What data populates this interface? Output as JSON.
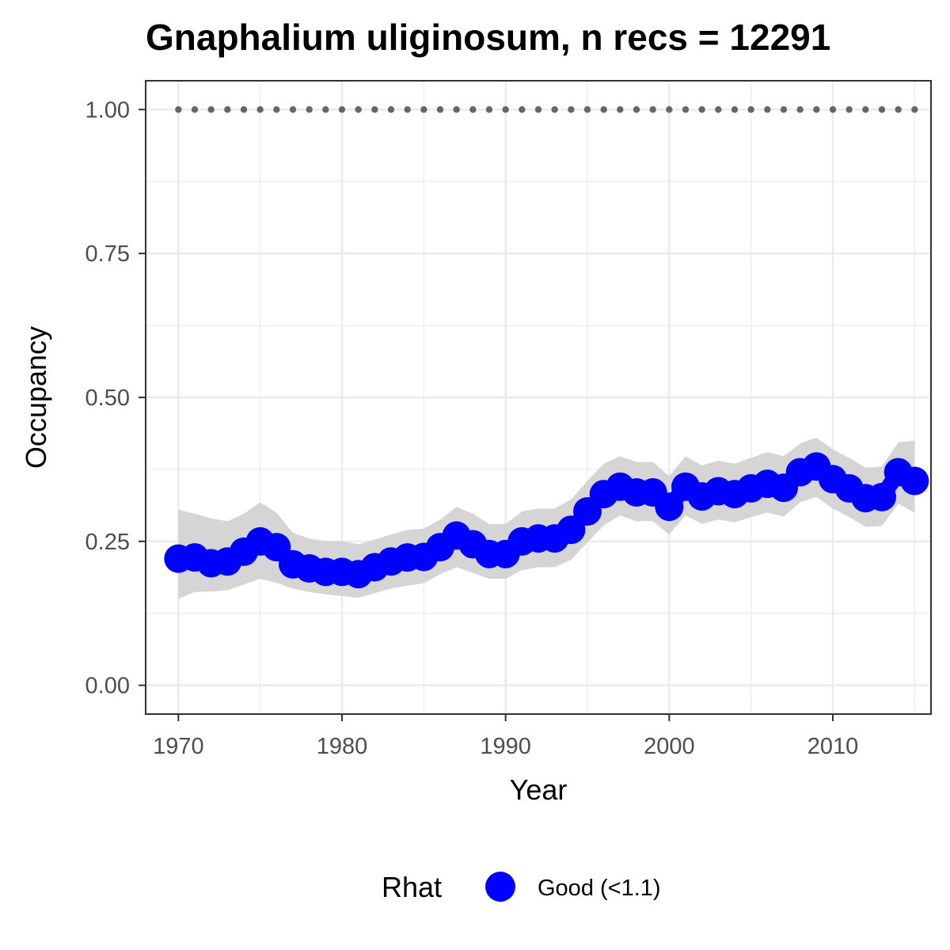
{
  "chart_data": {
    "type": "line",
    "title": "Gnaphalium uliginosum, n recs = 12291",
    "xlabel": "Year",
    "ylabel": "Occupancy",
    "xlim": [
      1968,
      2016
    ],
    "ylim": [
      -0.05,
      1.05
    ],
    "x_ticks": [
      1970,
      1980,
      1990,
      2000,
      2010
    ],
    "x_tick_labels": [
      "1970",
      "1980",
      "1990",
      "2000",
      "2010"
    ],
    "y_ticks": [
      0.0,
      0.25,
      0.5,
      0.75,
      1.0
    ],
    "y_tick_labels": [
      "0.00",
      "0.25",
      "0.50",
      "0.75",
      "1.00"
    ],
    "grid": true,
    "legend": {
      "title": "Rhat",
      "placement": "bottom",
      "entries": [
        {
          "label": "Good (<1.1)",
          "color": "#0000ff"
        }
      ]
    },
    "colors": {
      "points": "#0000ff",
      "ribbon": "#d3d3d3",
      "reference": "#666666",
      "grid": "#ebebeb",
      "border": "#333333"
    },
    "x": [
      1970,
      1971,
      1972,
      1973,
      1974,
      1975,
      1976,
      1977,
      1978,
      1979,
      1980,
      1981,
      1982,
      1983,
      1984,
      1985,
      1986,
      1987,
      1988,
      1989,
      1990,
      1991,
      1992,
      1993,
      1994,
      1995,
      1996,
      1997,
      1998,
      1999,
      2000,
      2001,
      2002,
      2003,
      2004,
      2005,
      2006,
      2007,
      2008,
      2009,
      2010,
      2011,
      2012,
      2013,
      2014,
      2015
    ],
    "series": [
      {
        "values": [
          0.22,
          0.222,
          0.212,
          0.215,
          0.232,
          0.25,
          0.24,
          0.21,
          0.203,
          0.197,
          0.197,
          0.193,
          0.205,
          0.215,
          0.222,
          0.223,
          0.24,
          0.26,
          0.245,
          0.228,
          0.228,
          0.25,
          0.255,
          0.255,
          0.27,
          0.302,
          0.332,
          0.345,
          0.335,
          0.335,
          0.31,
          0.345,
          0.328,
          0.337,
          0.332,
          0.342,
          0.35,
          0.343,
          0.37,
          0.38,
          0.358,
          0.342,
          0.325,
          0.327,
          0.37,
          0.355
        ],
        "lower": [
          0.15,
          0.162,
          0.163,
          0.165,
          0.175,
          0.185,
          0.178,
          0.168,
          0.162,
          0.158,
          0.155,
          0.152,
          0.16,
          0.168,
          0.173,
          0.177,
          0.193,
          0.205,
          0.195,
          0.185,
          0.185,
          0.2,
          0.205,
          0.205,
          0.218,
          0.248,
          0.278,
          0.295,
          0.285,
          0.285,
          0.262,
          0.295,
          0.28,
          0.288,
          0.283,
          0.292,
          0.3,
          0.293,
          0.318,
          0.327,
          0.307,
          0.292,
          0.275,
          0.277,
          0.315,
          0.3
        ],
        "upper": [
          0.305,
          0.298,
          0.29,
          0.285,
          0.298,
          0.318,
          0.3,
          0.265,
          0.255,
          0.25,
          0.25,
          0.245,
          0.253,
          0.262,
          0.27,
          0.272,
          0.288,
          0.31,
          0.298,
          0.28,
          0.28,
          0.302,
          0.307,
          0.307,
          0.323,
          0.355,
          0.385,
          0.398,
          0.388,
          0.388,
          0.363,
          0.398,
          0.382,
          0.39,
          0.385,
          0.395,
          0.405,
          0.398,
          0.42,
          0.43,
          0.41,
          0.395,
          0.378,
          0.38,
          0.422,
          0.425
        ]
      }
    ],
    "reference_line": {
      "y": 1.0,
      "style": "dotted"
    }
  }
}
